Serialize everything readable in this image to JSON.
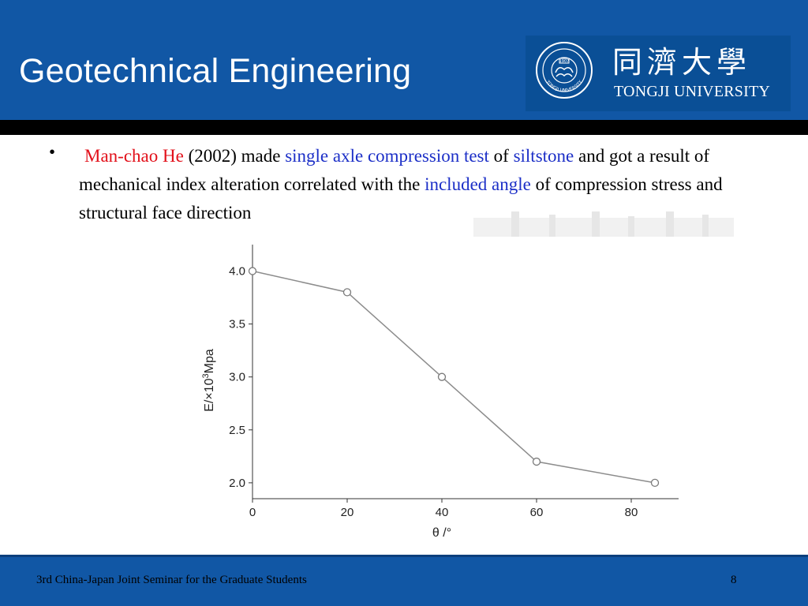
{
  "header": {
    "title": "Geotechnical Engineering",
    "university_cn": "同濟大學",
    "university_en": "TONGJI UNIVERSITY",
    "seal_year": "1907",
    "seal_text": "TONGJI UNIVERSITY"
  },
  "bullet": {
    "marker": "•",
    "segments": {
      "author": "Man-chao He",
      "t1": " (2002) made ",
      "test": "single axle compression test",
      "t2": " of ",
      "rock": "siltstone",
      "t3": " and got a result of mechanical index alteration correlated with the ",
      "angle": "included angle",
      "t4": " of compression stress and structural face direction"
    }
  },
  "colors": {
    "header_bg": "#1157a5",
    "accent_red": "#e2101a",
    "accent_blue": "#1c2fc7",
    "bar_black": "#000000"
  },
  "chart_data": {
    "type": "line",
    "x": [
      0,
      20,
      40,
      60,
      85
    ],
    "y": [
      4.0,
      3.8,
      3.0,
      2.2,
      2.0
    ],
    "xlabel": "θ /°",
    "ylabel_prefix": "E/×10",
    "ylabel_exp": "3",
    "ylabel_suffix": "Mpa",
    "xlim": [
      0,
      90
    ],
    "ylim": [
      1.85,
      4.25
    ],
    "xticks": [
      0,
      20,
      40,
      60,
      80
    ],
    "xtick_labels": [
      "0",
      "20",
      "40",
      "60",
      "80"
    ],
    "yticks": [
      2.0,
      2.5,
      3.0,
      3.5,
      4.0
    ],
    "ytick_labels": [
      "2.0",
      "2.5",
      "3.0",
      "3.5",
      "4.0"
    ],
    "grid": false,
    "marker": "open-circle"
  },
  "footer": {
    "left": "3rd China-Japan Joint Seminar for the Graduate Students",
    "page": "8"
  }
}
